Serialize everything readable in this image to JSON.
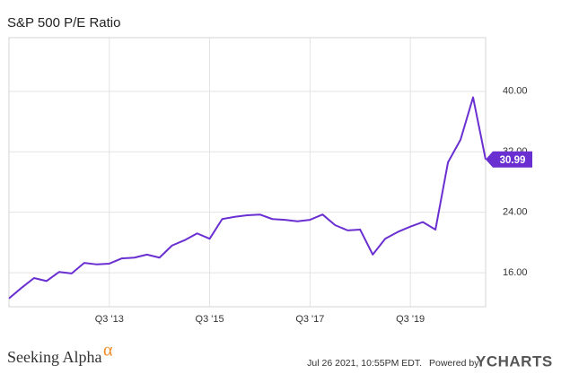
{
  "chart_data": {
    "type": "line",
    "title": "S&P 500 P/E Ratio",
    "categories": [
      null,
      null,
      null,
      null,
      null,
      null,
      null,
      null,
      "Q3 '13",
      null,
      null,
      null,
      null,
      null,
      null,
      null,
      "Q3 '15",
      null,
      null,
      null,
      null,
      null,
      null,
      null,
      "Q3 '17",
      null,
      null,
      null,
      null,
      null,
      null,
      null,
      "Q3 '19",
      null,
      null,
      null,
      null,
      null,
      null
    ],
    "values": [
      12.6,
      14.0,
      15.3,
      14.9,
      16.1,
      15.9,
      17.3,
      17.1,
      17.2,
      17.9,
      18.0,
      18.4,
      18.0,
      19.6,
      20.3,
      21.2,
      20.5,
      23.1,
      23.4,
      23.6,
      23.7,
      23.1,
      23.0,
      22.8,
      23.0,
      23.7,
      22.3,
      21.6,
      21.7,
      18.4,
      20.5,
      21.4,
      22.1,
      22.7,
      21.7,
      30.6,
      33.6,
      39.2,
      30.99
    ],
    "color": "#6a2fd1",
    "ylim": [
      11.5,
      47.1
    ],
    "yticks": [
      {
        "value": 16,
        "label": "16.00"
      },
      {
        "value": 24,
        "label": "24.00"
      },
      {
        "value": 32,
        "label": "32.00"
      },
      {
        "value": 40,
        "label": "40.00"
      }
    ],
    "grid": true
  },
  "footer": {
    "brand": "Seeking Alpha",
    "brand_mark": "α",
    "timestamp": "Jul 26 2021, 10:55PM EDT.",
    "powered": "Powered by",
    "provider": "YCHARTS"
  }
}
